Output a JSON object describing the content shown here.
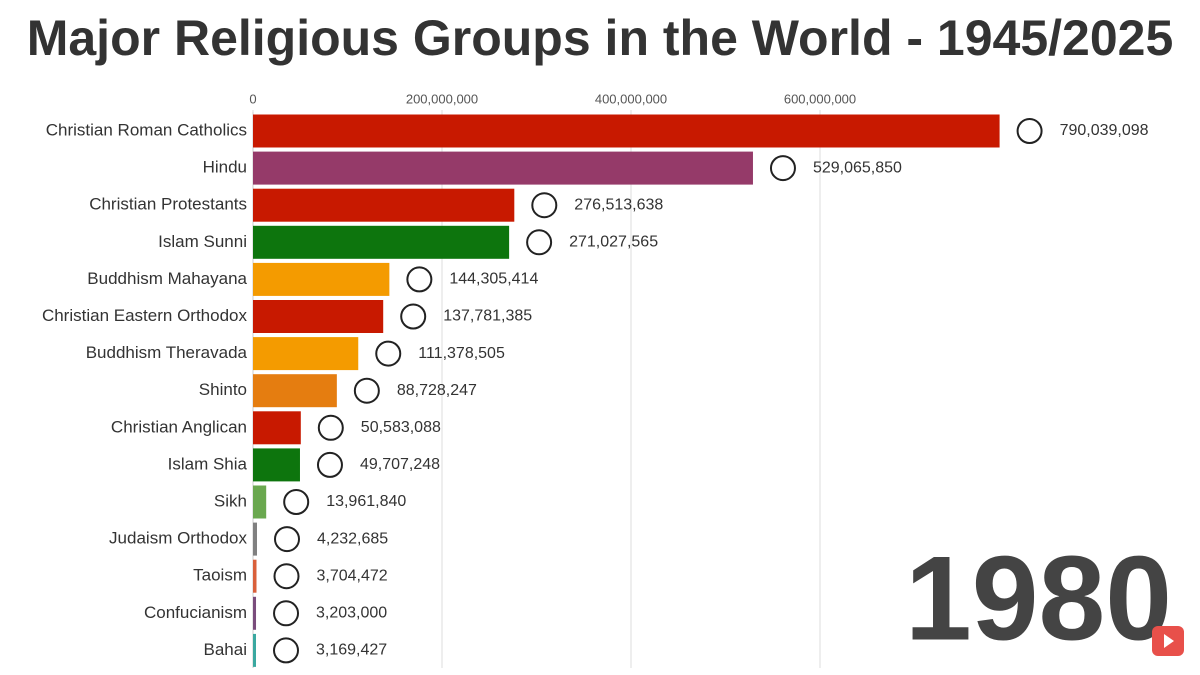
{
  "chart_data": {
    "type": "bar",
    "orientation": "horizontal",
    "title": "Major Religious Groups in the World - 1945/2025",
    "year": "1980",
    "categories": [
      "Christian Roman Catholics",
      "Hindu",
      "Christian Protestants",
      "Islam Sunni",
      "Buddhism Mahayana",
      "Christian Eastern Orthodox",
      "Buddhism Theravada",
      "Shinto",
      "Christian Anglican",
      "Islam Shia",
      "Sikh",
      "Judaism Orthodox",
      "Taoism",
      "Confucianism",
      "Bahai"
    ],
    "values": [
      790039098,
      529065850,
      276513638,
      271027565,
      144305414,
      137781385,
      111378505,
      88728247,
      50583088,
      49707248,
      13961840,
      4232685,
      3704472,
      3203000,
      3169427
    ],
    "value_labels": [
      "790,039,098",
      "529,065,850",
      "276,513,638",
      "271,027,565",
      "144,305,414",
      "137,781,385",
      "111,378,505",
      "88,728,247",
      "50,583,088",
      "49,707,248",
      "13,961,840",
      "4,232,685",
      "3,704,472",
      "3,203,000",
      "3,169,427"
    ],
    "colors": [
      "#c81900",
      "#953a69",
      "#c81900",
      "#0d750d",
      "#f49b00",
      "#c81900",
      "#f49b00",
      "#e57d10",
      "#c81900",
      "#0d750d",
      "#6aa84f",
      "#808080",
      "#d9603b",
      "#7a4c7c",
      "#3aa8a0"
    ],
    "xlim": [
      0,
      800000000
    ],
    "xticks": [
      0,
      {
        "value": 200000000,
        "label": "200,000,000"
      },
      {
        "value": 400000000,
        "label": "400,000,000"
      },
      {
        "value": 600000000,
        "label": "600,000,000"
      }
    ],
    "grid": true
  }
}
